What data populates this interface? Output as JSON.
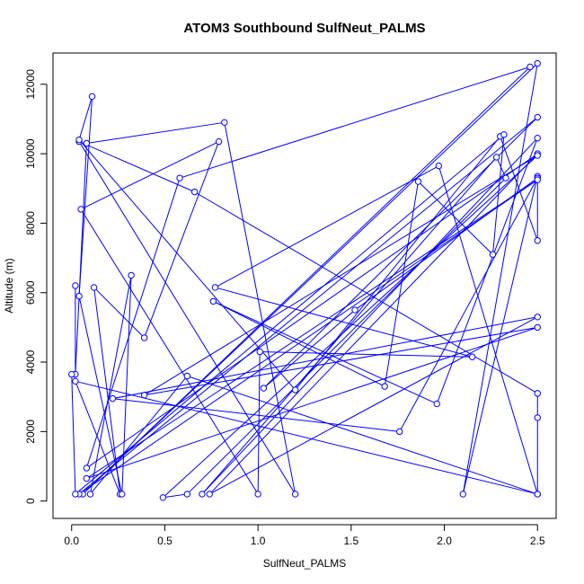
{
  "chart_data": {
    "type": "line",
    "title": "ATOM3 Southbound SulfNeut_PALMS",
    "xlabel": "SulfNeut_PALMS",
    "ylabel": "Altitude (m)",
    "xlim": [
      -0.1,
      2.6
    ],
    "ylim": [
      -500,
      12900
    ],
    "x_ticks": [
      0.0,
      0.5,
      1.0,
      1.5,
      2.0,
      2.5
    ],
    "x_tick_labels": [
      "0.0",
      "0.5",
      "1.0",
      "1.5",
      "2.0",
      "2.5"
    ],
    "y_ticks": [
      0,
      2000,
      4000,
      6000,
      8000,
      10000,
      12000
    ],
    "y_tick_labels": [
      "0",
      "2000",
      "4000",
      "6000",
      "8000",
      "10000",
      "12000"
    ],
    "grid": false,
    "marker": "open-circle",
    "series": [
      {
        "color": "#0000ff",
        "points": [
          [
            0.02,
            6200
          ],
          [
            0.02,
            3650
          ],
          [
            0.08,
            10300
          ],
          [
            0.82,
            10900
          ],
          [
            1.2,
            200
          ],
          [
            0.04,
            10350
          ],
          [
            0.66,
            8900
          ],
          [
            2.5,
            3100
          ],
          [
            2.5,
            2400
          ],
          [
            2.5,
            200
          ],
          [
            0.02,
            3450
          ],
          [
            0.26,
            200
          ],
          [
            0.12,
            6150
          ],
          [
            0.39,
            4700
          ],
          [
            0.79,
            10350
          ],
          [
            0.05,
            8400
          ],
          [
            1.0,
            200
          ],
          [
            1.01,
            4300
          ],
          [
            2.15,
            4150
          ],
          [
            0.77,
            6150
          ],
          [
            1.97,
            9650
          ],
          [
            2.5,
            200
          ],
          [
            0.62,
            3600
          ],
          [
            0.1,
            200
          ],
          [
            0.32,
            6500
          ],
          [
            0.27,
            200
          ],
          [
            0.04,
            5900
          ],
          [
            0.11,
            11650
          ],
          [
            0.04,
            10400
          ],
          [
            1.2,
            3200
          ],
          [
            2.3,
            10500
          ],
          [
            2.5,
            7500
          ],
          [
            2.5,
            9350
          ],
          [
            2.1,
            200
          ],
          [
            2.5,
            12600
          ],
          [
            0.06,
            200
          ],
          [
            2.46,
            12500
          ],
          [
            0.58,
            9300
          ],
          [
            0.08,
            950
          ],
          [
            2.5,
            10000
          ],
          [
            0.74,
            200
          ],
          [
            2.5,
            5300
          ],
          [
            0.22,
            2950
          ],
          [
            1.76,
            2000
          ],
          [
            2.5,
            9300
          ],
          [
            1.52,
            5500
          ],
          [
            1.03,
            3250
          ],
          [
            2.5,
            11050
          ],
          [
            0.04,
            200
          ],
          [
            2.5,
            9250
          ],
          [
            0.08,
            650
          ],
          [
            2.5,
            5000
          ],
          [
            0.39,
            3050
          ],
          [
            2.5,
            9950
          ],
          [
            0.49,
            100
          ],
          [
            0.62,
            200
          ],
          [
            2.33,
            9300
          ],
          [
            2.28,
            9900
          ],
          [
            0.7,
            200
          ],
          [
            2.5,
            10450
          ],
          [
            1.96,
            2800
          ],
          [
            0.76,
            5750
          ],
          [
            1.68,
            3300
          ],
          [
            1.86,
            9200
          ],
          [
            2.26,
            7100
          ],
          [
            2.32,
            10550
          ],
          [
            0.02,
            200
          ],
          [
            0.0,
            3650
          ]
        ]
      }
    ]
  }
}
